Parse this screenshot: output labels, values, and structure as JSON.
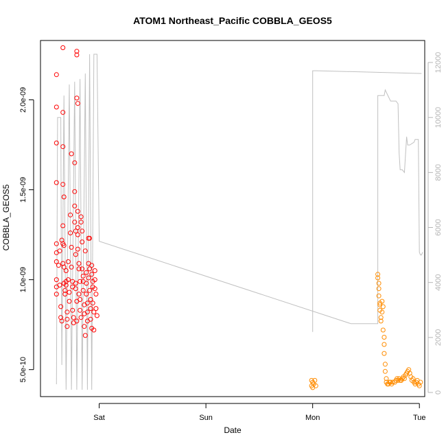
{
  "chart_data": {
    "type": "scatter",
    "title": "ATOM1 Northeast_Pacific COBBLA_GEOS5",
    "xlabel": "Date",
    "ylabel": "COBBLA_GEOS5",
    "x_ticks": [
      "Sat",
      "Sun",
      "Mon",
      "Tue"
    ],
    "x_range_days": [
      -0.55,
      3.05
    ],
    "y_ticks": [
      "5.0e-10",
      "1.0e-09",
      "1.5e-09",
      "2.0e-09"
    ],
    "y_tick_values": [
      5e-10,
      1e-09,
      1.5e-09,
      2e-09
    ],
    "ylim": [
      3.5e-10,
      2.33e-09
    ],
    "y2_ticks": [
      "0",
      "2000",
      "4000",
      "6000",
      "8000",
      "10000",
      "12000"
    ],
    "y2_tick_values": [
      0,
      2000,
      4000,
      6000,
      8000,
      10000,
      12000
    ],
    "y2lim": [
      -150,
      12800
    ],
    "grid": false,
    "colors": {
      "series1": "#ff0000",
      "series2": "#ff8c00",
      "altitude": "#c0c0c0",
      "axis": "#000000",
      "right_axis": "#b5b5b5"
    },
    "series": [
      {
        "color": "#ff0000",
        "points": [
          [
            -0.4,
            2.14e-09
          ],
          [
            -0.4,
            1.96e-09
          ],
          [
            -0.4,
            1.76e-09
          ],
          [
            -0.4,
            1.54e-09
          ],
          [
            -0.4,
            1.2e-09
          ],
          [
            -0.4,
            1.15e-09
          ],
          [
            -0.4,
            1.1e-09
          ],
          [
            -0.4,
            1e-09
          ],
          [
            -0.4,
            9.6e-10
          ],
          [
            -0.4,
            9.2e-10
          ],
          [
            -0.38,
            1.08e-09
          ],
          [
            -0.37,
            1.16e-09
          ],
          [
            -0.37,
            9.7e-10
          ],
          [
            -0.36,
            8.5e-10
          ],
          [
            -0.36,
            7.9e-10
          ],
          [
            -0.35,
            7.7e-10
          ],
          [
            -0.35,
            1.22e-09
          ],
          [
            -0.34,
            1.3e-09
          ],
          [
            -0.34,
            1.2e-09
          ],
          [
            -0.34,
            1.09e-09
          ],
          [
            -0.34,
            2.29e-09
          ],
          [
            -0.34,
            1.93e-09
          ],
          [
            -0.34,
            1.74e-09
          ],
          [
            -0.34,
            1.53e-09
          ],
          [
            -0.33,
            1.46e-09
          ],
          [
            -0.33,
            1.19e-09
          ],
          [
            -0.33,
            1.07e-09
          ],
          [
            -0.33,
            9.8e-10
          ],
          [
            -0.32,
            9.4e-10
          ],
          [
            -0.32,
            9.2e-10
          ],
          [
            -0.31,
            1.05e-09
          ],
          [
            -0.31,
            9.9e-10
          ],
          [
            -0.31,
            9.7e-10
          ],
          [
            -0.3,
            8.2e-10
          ],
          [
            -0.3,
            7.8e-10
          ],
          [
            -0.3,
            7.4e-10
          ],
          [
            -0.29,
            1.1e-09
          ],
          [
            -0.29,
            1e-09
          ],
          [
            -0.28,
            9.3e-10
          ],
          [
            -0.28,
            8.8e-10
          ],
          [
            -0.27,
            1.36e-09
          ],
          [
            -0.27,
            1.26e-09
          ],
          [
            -0.26,
            1.7e-09
          ],
          [
            -0.26,
            1.18e-09
          ],
          [
            -0.26,
            1.07e-09
          ],
          [
            -0.25,
            9.9e-10
          ],
          [
            -0.25,
            9.6e-10
          ],
          [
            -0.25,
            8.3e-10
          ],
          [
            -0.24,
            7.9e-10
          ],
          [
            -0.24,
            7.6e-10
          ],
          [
            -0.23,
            1.65e-09
          ],
          [
            -0.23,
            1.49e-09
          ],
          [
            -0.23,
            1.41e-09
          ],
          [
            -0.23,
            1.32e-09
          ],
          [
            -0.22,
            1.27e-09
          ],
          [
            -0.22,
            1.14e-09
          ],
          [
            -0.22,
            9.8e-10
          ],
          [
            -0.22,
            9.5e-10
          ],
          [
            -0.21,
            8.8e-10
          ],
          [
            -0.21,
            7.7e-10
          ],
          [
            -0.21,
            2.27e-09
          ],
          [
            -0.21,
            2.25e-09
          ],
          [
            -0.21,
            2.01e-09
          ],
          [
            -0.2,
            1.98e-09
          ],
          [
            -0.2,
            1.38e-09
          ],
          [
            -0.2,
            1.29e-09
          ],
          [
            -0.2,
            1.25e-09
          ],
          [
            -0.2,
            1.17e-09
          ],
          [
            -0.19,
            1.09e-09
          ],
          [
            -0.19,
            1.06e-09
          ],
          [
            -0.19,
            9.2e-10
          ],
          [
            -0.18,
            9.9e-10
          ],
          [
            -0.18,
            8.9e-10
          ],
          [
            -0.18,
            8.3e-10
          ],
          [
            -0.17,
            7.9e-10
          ],
          [
            -0.17,
            1.35e-09
          ],
          [
            -0.17,
            1.32e-09
          ],
          [
            -0.16,
            1.27e-09
          ],
          [
            -0.16,
            1.21e-09
          ],
          [
            -0.16,
            1.06e-09
          ],
          [
            -0.15,
            1.02e-09
          ],
          [
            -0.15,
            9.9e-10
          ],
          [
            -0.15,
            9.4e-10
          ],
          [
            -0.14,
            8.6e-10
          ],
          [
            -0.14,
            8.1e-10
          ],
          [
            -0.14,
            7.4e-10
          ],
          [
            -0.13,
            6.9e-10
          ],
          [
            -0.13,
            1.16e-09
          ],
          [
            -0.12,
            1.04e-09
          ],
          [
            -0.12,
            9.8e-10
          ],
          [
            -0.12,
            9.2e-10
          ],
          [
            -0.11,
            8.7e-10
          ],
          [
            -0.11,
            8.2e-10
          ],
          [
            -0.11,
            7.7e-10
          ],
          [
            -0.1,
            1.23e-09
          ],
          [
            -0.1,
            1.09e-09
          ],
          [
            -0.1,
            1.01e-09
          ],
          [
            -0.09,
            1.23e-09
          ],
          [
            -0.09,
            1.06e-09
          ],
          [
            -0.09,
            9.4e-10
          ],
          [
            -0.08,
            8.9e-10
          ],
          [
            -0.08,
            8.4e-10
          ],
          [
            -0.08,
            7.8e-10
          ],
          [
            -0.07,
            7.3e-10
          ],
          [
            -0.07,
            1.08e-09
          ],
          [
            -0.07,
            1.03e-09
          ],
          [
            -0.06,
            9.9e-10
          ],
          [
            -0.06,
            9.6e-10
          ],
          [
            -0.06,
            8.7e-10
          ],
          [
            -0.05,
            8.2e-10
          ],
          [
            -0.05,
            7.2e-10
          ],
          [
            -0.04,
            1.05e-09
          ],
          [
            -0.04,
            1e-09
          ],
          [
            -0.04,
            9.5e-10
          ],
          [
            -0.03,
            9.2e-10
          ],
          [
            -0.03,
            8.4e-10
          ],
          [
            -0.02,
            8e-10
          ]
        ]
      },
      {
        "color": "#ff8c00",
        "points": [
          [
            1.99,
            4.4e-10
          ],
          [
            1.99,
            4.1e-10
          ],
          [
            2.0,
            4.3e-10
          ],
          [
            2.0,
            4e-10
          ],
          [
            2.01,
            4.2e-10
          ],
          [
            2.02,
            4.4e-10
          ],
          [
            2.03,
            4.1e-10
          ],
          [
            2.61,
            1.03e-09
          ],
          [
            2.61,
            1.01e-09
          ],
          [
            2.62,
            9.8e-10
          ],
          [
            2.62,
            9.5e-10
          ],
          [
            2.62,
            9.1e-10
          ],
          [
            2.63,
            8.7e-10
          ],
          [
            2.63,
            8.6e-10
          ],
          [
            2.63,
            8.3e-10
          ],
          [
            2.64,
            7.9e-10
          ],
          [
            2.64,
            7.7e-10
          ],
          [
            2.65,
            8.2e-10
          ],
          [
            2.65,
            8.8e-10
          ],
          [
            2.66,
            8.5e-10
          ],
          [
            2.66,
            7.2e-10
          ],
          [
            2.67,
            6.8e-10
          ],
          [
            2.67,
            6.4e-10
          ],
          [
            2.67,
            5.9e-10
          ],
          [
            2.68,
            5.3e-10
          ],
          [
            2.68,
            4.9e-10
          ],
          [
            2.69,
            4.5e-10
          ],
          [
            2.69,
            4.3e-10
          ],
          [
            2.7,
            4.2e-10
          ],
          [
            2.71,
            4.2e-10
          ],
          [
            2.72,
            4.3e-10
          ],
          [
            2.73,
            4.3e-10
          ],
          [
            2.74,
            4.2e-10
          ],
          [
            2.75,
            4.3e-10
          ],
          [
            2.77,
            4.3e-10
          ],
          [
            2.78,
            4.4e-10
          ],
          [
            2.79,
            4.5e-10
          ],
          [
            2.8,
            4.4e-10
          ],
          [
            2.81,
            4.5e-10
          ],
          [
            2.82,
            4.4e-10
          ],
          [
            2.83,
            4.4e-10
          ],
          [
            2.84,
            4.5e-10
          ],
          [
            2.85,
            4.6e-10
          ],
          [
            2.86,
            4.5e-10
          ],
          [
            2.87,
            4.7e-10
          ],
          [
            2.88,
            4.8e-10
          ],
          [
            2.89,
            4.9e-10
          ],
          [
            2.9,
            5e-10
          ],
          [
            2.91,
            4.8e-10
          ],
          [
            2.92,
            4.6e-10
          ],
          [
            2.93,
            4.4e-10
          ],
          [
            2.94,
            4.5e-10
          ],
          [
            2.95,
            4.3e-10
          ],
          [
            2.96,
            4.2e-10
          ],
          [
            2.97,
            4.3e-10
          ],
          [
            2.98,
            4.4e-10
          ],
          [
            2.99,
            4.2e-10
          ],
          [
            3.0,
            4.1e-10
          ],
          [
            3.01,
            4.3e-10
          ]
        ]
      },
      {
        "color": "#c0c0c0",
        "axis": "right",
        "line": [
          [
            -0.4,
            300
          ],
          [
            -0.39,
            10000
          ],
          [
            -0.36,
            10000
          ],
          [
            -0.35,
            1000
          ],
          [
            -0.33,
            10800
          ],
          [
            -0.31,
            100
          ],
          [
            -0.28,
            11200
          ],
          [
            -0.26,
            100
          ],
          [
            -0.23,
            11300
          ],
          [
            -0.21,
            100
          ],
          [
            -0.18,
            11400
          ],
          [
            -0.16,
            100
          ],
          [
            -0.13,
            11600
          ],
          [
            -0.11,
            100
          ],
          [
            -0.09,
            12300
          ],
          [
            -0.07,
            100
          ],
          [
            -0.05,
            12300
          ],
          [
            -0.02,
            12300
          ],
          [
            0.0,
            5500
          ],
          [
            2.36,
            2500
          ],
          [
            2.61,
            2500
          ],
          [
            2.61,
            10800
          ],
          [
            2.67,
            10800
          ],
          [
            2.68,
            11000
          ],
          [
            2.73,
            10600
          ],
          [
            2.78,
            10600
          ],
          [
            2.8,
            10500
          ],
          [
            2.81,
            8700
          ],
          [
            2.82,
            8100
          ],
          [
            2.84,
            8100
          ],
          [
            2.86,
            8000
          ],
          [
            2.88,
            9300
          ],
          [
            2.89,
            9000
          ],
          [
            2.9,
            9000
          ],
          [
            2.91,
            9000
          ],
          [
            2.95,
            9100
          ],
          [
            2.96,
            9200
          ],
          [
            2.98,
            9200
          ],
          [
            2.99,
            9200
          ],
          [
            3.0,
            5100
          ],
          [
            3.01,
            5000
          ],
          [
            3.02,
            5000
          ],
          [
            3.03,
            5100
          ]
        ]
      },
      {
        "color": "#c0c0c0",
        "axis": "right",
        "line": [
          [
            2.0,
            2200
          ],
          [
            2.0,
            11700
          ],
          [
            2.04,
            11700
          ],
          [
            3.02,
            11600
          ]
        ]
      }
    ]
  }
}
